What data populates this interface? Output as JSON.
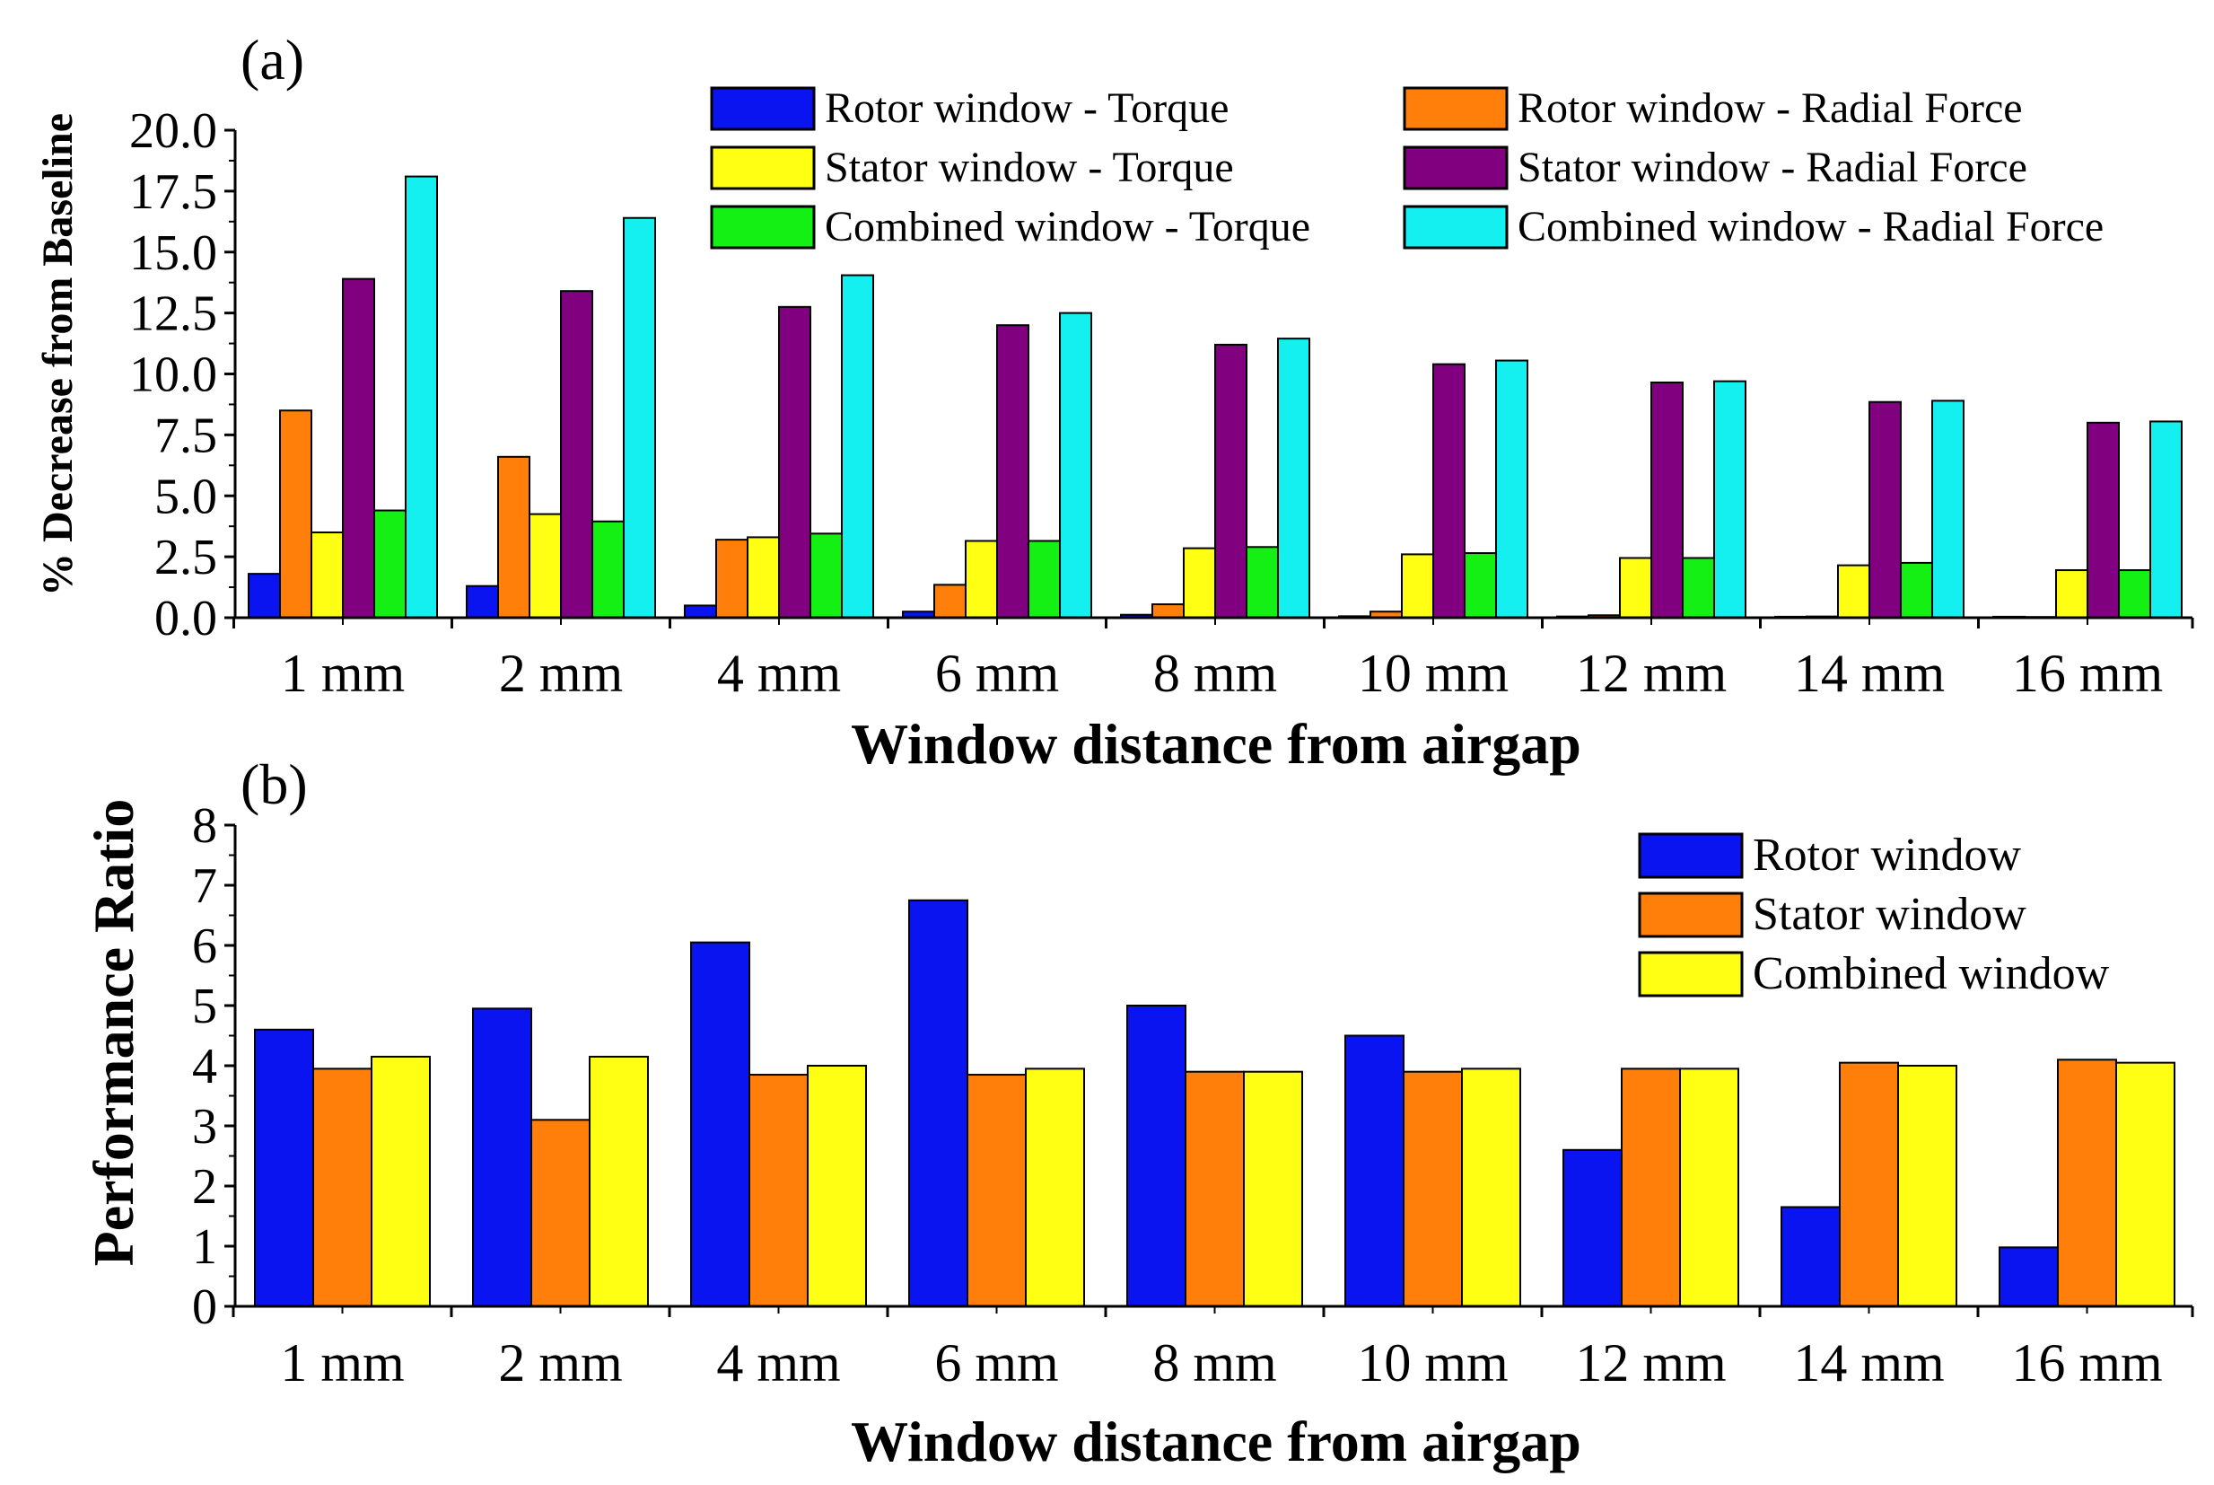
{
  "chart_data": [
    {
      "type": "bar",
      "panel_label": "(a)",
      "categories": [
        "1 mm",
        "2 mm",
        "4 mm",
        "6 mm",
        "8 mm",
        "10 mm",
        "12 mm",
        "14 mm",
        "16 mm"
      ],
      "xlabel": "Window distance from airgap",
      "ylabel": "% Decrease from Baseline",
      "ylim": [
        0,
        20
      ],
      "yticks": [
        "0.0",
        "2.5",
        "5.0",
        "7.5",
        "10.0",
        "12.5",
        "15.0",
        "17.5",
        "20.0"
      ],
      "legend_position": "top-right",
      "series": [
        {
          "name": "Rotor window - Torque",
          "color": "#0a14f0",
          "values": [
            1.8,
            1.3,
            0.5,
            0.25,
            0.12,
            0.06,
            0.05,
            0.04,
            0.04
          ]
        },
        {
          "name": "Rotor window - Radial Force",
          "color": "#ff7f0a",
          "values": [
            8.5,
            6.6,
            3.2,
            1.35,
            0.55,
            0.25,
            0.1,
            0.05,
            0.03
          ]
        },
        {
          "name": "Stator window - Torque",
          "color": "#ffff14",
          "values": [
            3.5,
            4.25,
            3.3,
            3.15,
            2.85,
            2.6,
            2.45,
            2.15,
            1.95
          ]
        },
        {
          "name": "Stator window - Radial Force",
          "color": "#800080",
          "values": [
            13.9,
            13.4,
            12.75,
            12.0,
            11.2,
            10.4,
            9.65,
            8.85,
            8.0
          ]
        },
        {
          "name": "Combined window - Torque",
          "color": "#14f014",
          "values": [
            4.4,
            3.95,
            3.45,
            3.15,
            2.9,
            2.65,
            2.45,
            2.25,
            1.95
          ]
        },
        {
          "name": "Combined window - Radial Force",
          "color": "#14f0f0",
          "values": [
            18.1,
            16.4,
            14.05,
            12.5,
            11.45,
            10.55,
            9.7,
            8.9,
            8.05
          ]
        }
      ]
    },
    {
      "type": "bar",
      "panel_label": "(b)",
      "categories": [
        "1 mm",
        "2 mm",
        "4 mm",
        "6 mm",
        "8 mm",
        "10 mm",
        "12 mm",
        "14 mm",
        "16 mm"
      ],
      "xlabel": "Window distance from airgap",
      "ylabel": "Performance Ratio",
      "ylim": [
        0,
        8
      ],
      "yticks": [
        "0",
        "1",
        "2",
        "3",
        "4",
        "5",
        "6",
        "7",
        "8"
      ],
      "legend_position": "top-right",
      "series": [
        {
          "name": "Rotor window",
          "color": "#0a14f0",
          "values": [
            4.6,
            4.95,
            6.05,
            6.75,
            5.0,
            4.5,
            2.6,
            1.65,
            0.98
          ]
        },
        {
          "name": "Stator window",
          "color": "#ff7f0a",
          "values": [
            3.95,
            3.1,
            3.85,
            3.85,
            3.9,
            3.9,
            3.95,
            4.05,
            4.1
          ]
        },
        {
          "name": "Combined window",
          "color": "#ffff14",
          "values": [
            4.15,
            4.15,
            4.0,
            3.95,
            3.9,
            3.95,
            3.95,
            4.0,
            4.05
          ]
        }
      ]
    }
  ]
}
